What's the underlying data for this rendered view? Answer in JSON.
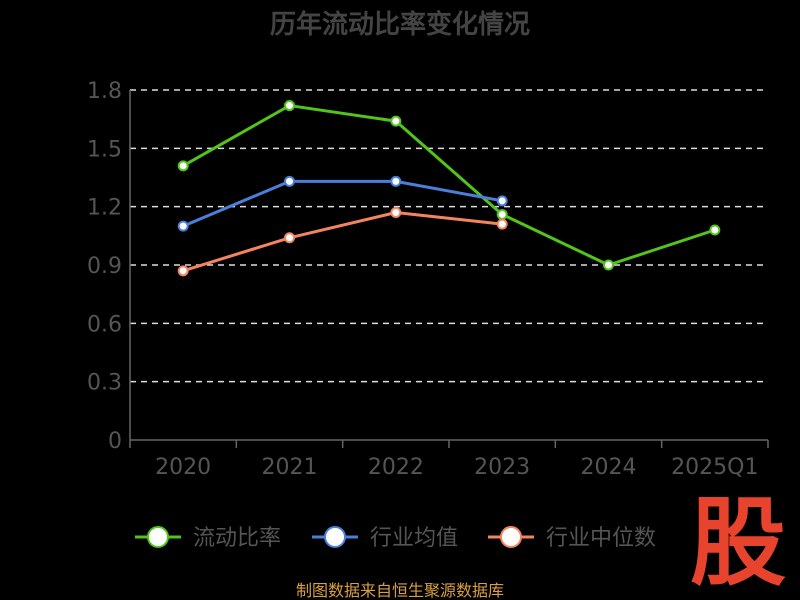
{
  "chart_data": {
    "type": "line",
    "title": "历年流动比率变化情况",
    "categories": [
      "2020",
      "2021",
      "2022",
      "2023",
      "2024",
      "2025Q1"
    ],
    "ylim": [
      0,
      1.8
    ],
    "yticks": [
      "0",
      "0.3",
      "0.6",
      "0.9",
      "1.2",
      "1.5",
      "1.8"
    ],
    "grid": true,
    "legend_position": "bottom",
    "series": [
      {
        "name": "流动比率",
        "color": "#52c41a",
        "values": [
          1.41,
          1.72,
          1.64,
          1.16,
          0.9,
          1.08
        ]
      },
      {
        "name": "行业均值",
        "color": "#4a7fdc",
        "values": [
          1.1,
          1.33,
          1.33,
          1.23,
          null,
          null
        ]
      },
      {
        "name": "行业中位数",
        "color": "#f4845f",
        "values": [
          0.87,
          1.04,
          1.17,
          1.11,
          null,
          null
        ]
      }
    ]
  },
  "source_text": "制图数据来自恒生聚源数据库",
  "watermark_text": "股"
}
